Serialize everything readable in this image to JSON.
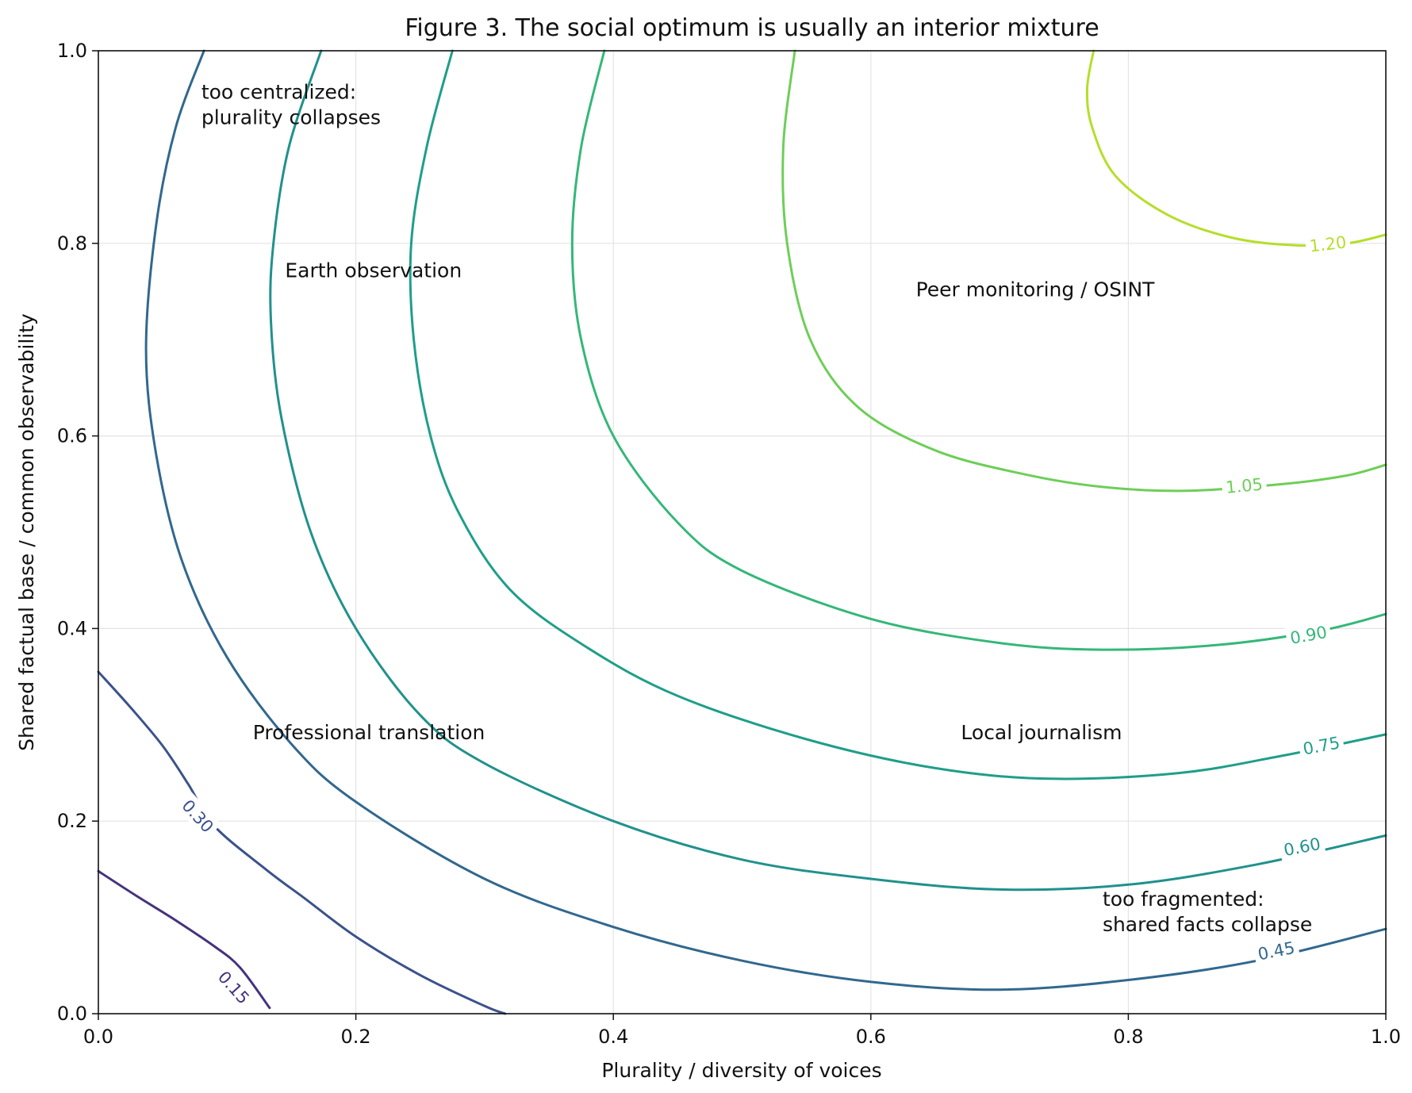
{
  "chart_data": {
    "type": "contour",
    "title": "Figure 3. The social optimum is usually an interior mixture",
    "xlabel": "Plurality / diversity of voices",
    "ylabel": "Shared factual base / common observability",
    "xlim": [
      0.0,
      1.0
    ],
    "ylim": [
      0.0,
      1.0
    ],
    "xticks": [
      "0.0",
      "0.2",
      "0.4",
      "0.6",
      "0.8",
      "1.0"
    ],
    "yticks": [
      "0.0",
      "0.2",
      "0.4",
      "0.6",
      "0.8",
      "1.0"
    ],
    "grid": true,
    "levels": [
      {
        "label": "0.15",
        "color": "#46327e",
        "label_at": [
          0.105,
          0.027
        ],
        "points": [
          [
            0.0,
            0.148
          ],
          [
            0.03,
            0.122
          ],
          [
            0.06,
            0.097
          ],
          [
            0.09,
            0.07
          ],
          [
            0.11,
            0.048
          ],
          [
            0.133,
            0.006
          ]
        ]
      },
      {
        "label": "0.30",
        "color": "#3b528b",
        "label_at": [
          0.077,
          0.205
        ],
        "points": [
          [
            0.0,
            0.355
          ],
          [
            0.025,
            0.318
          ],
          [
            0.05,
            0.278
          ],
          [
            0.07,
            0.238
          ],
          [
            0.09,
            0.195
          ],
          [
            0.13,
            0.15
          ],
          [
            0.16,
            0.12
          ],
          [
            0.2,
            0.08
          ],
          [
            0.25,
            0.04
          ],
          [
            0.3,
            0.008
          ],
          [
            0.316,
            0.0
          ]
        ]
      },
      {
        "label": "0.45",
        "color": "#31688e",
        "label_at": [
          0.915,
          0.065
        ],
        "points": [
          [
            0.082,
            1.0
          ],
          [
            0.06,
            0.92
          ],
          [
            0.045,
            0.82
          ],
          [
            0.037,
            0.69
          ],
          [
            0.045,
            0.58
          ],
          [
            0.065,
            0.47
          ],
          [
            0.1,
            0.37
          ],
          [
            0.15,
            0.28
          ],
          [
            0.2,
            0.22
          ],
          [
            0.3,
            0.14
          ],
          [
            0.4,
            0.09
          ],
          [
            0.5,
            0.055
          ],
          [
            0.6,
            0.033
          ],
          [
            0.7,
            0.025
          ],
          [
            0.8,
            0.035
          ],
          [
            0.9,
            0.055
          ],
          [
            1.0,
            0.088
          ]
        ]
      },
      {
        "label": "0.60",
        "color": "#21918c",
        "label_at": [
          0.935,
          0.173
        ],
        "points": [
          [
            0.173,
            1.0
          ],
          [
            0.148,
            0.9
          ],
          [
            0.136,
            0.8
          ],
          [
            0.134,
            0.72
          ],
          [
            0.142,
            0.62
          ],
          [
            0.165,
            0.5
          ],
          [
            0.2,
            0.4
          ],
          [
            0.25,
            0.31
          ],
          [
            0.3,
            0.26
          ],
          [
            0.4,
            0.2
          ],
          [
            0.5,
            0.16
          ],
          [
            0.6,
            0.14
          ],
          [
            0.7,
            0.129
          ],
          [
            0.8,
            0.134
          ],
          [
            0.9,
            0.155
          ],
          [
            1.0,
            0.185
          ]
        ]
      },
      {
        "label": "0.75",
        "color": "#1f9e89",
        "label_at": [
          0.95,
          0.278
        ],
        "points": [
          [
            0.275,
            1.0
          ],
          [
            0.255,
            0.9
          ],
          [
            0.243,
            0.8
          ],
          [
            0.245,
            0.7
          ],
          [
            0.258,
            0.6
          ],
          [
            0.28,
            0.52
          ],
          [
            0.32,
            0.44
          ],
          [
            0.38,
            0.38
          ],
          [
            0.45,
            0.33
          ],
          [
            0.55,
            0.285
          ],
          [
            0.65,
            0.255
          ],
          [
            0.74,
            0.244
          ],
          [
            0.84,
            0.25
          ],
          [
            0.92,
            0.268
          ],
          [
            1.0,
            0.29
          ]
        ]
      },
      {
        "label": "0.90",
        "color": "#35b779",
        "label_at": [
          0.94,
          0.393
        ],
        "points": [
          [
            0.393,
            1.0
          ],
          [
            0.375,
            0.9
          ],
          [
            0.368,
            0.8
          ],
          [
            0.375,
            0.7
          ],
          [
            0.4,
            0.6
          ],
          [
            0.45,
            0.51
          ],
          [
            0.5,
            0.46
          ],
          [
            0.6,
            0.41
          ],
          [
            0.7,
            0.385
          ],
          [
            0.78,
            0.378
          ],
          [
            0.87,
            0.383
          ],
          [
            0.95,
            0.398
          ],
          [
            1.0,
            0.415
          ]
        ]
      },
      {
        "label": "1.05",
        "color": "#6ece58",
        "label_at": [
          0.89,
          0.548
        ],
        "points": [
          [
            0.541,
            1.0
          ],
          [
            0.532,
            0.9
          ],
          [
            0.535,
            0.8
          ],
          [
            0.553,
            0.7
          ],
          [
            0.59,
            0.63
          ],
          [
            0.65,
            0.585
          ],
          [
            0.72,
            0.56
          ],
          [
            0.78,
            0.547
          ],
          [
            0.845,
            0.543
          ],
          [
            0.92,
            0.55
          ],
          [
            0.97,
            0.559
          ],
          [
            1.0,
            0.57
          ]
        ]
      },
      {
        "label": "1.20",
        "color": "#b5de2b",
        "label_at": [
          0.955,
          0.799
        ],
        "points": [
          [
            0.773,
            1.0
          ],
          [
            0.768,
            0.96
          ],
          [
            0.772,
            0.92
          ],
          [
            0.79,
            0.87
          ],
          [
            0.83,
            0.83
          ],
          [
            0.88,
            0.806
          ],
          [
            0.93,
            0.798
          ],
          [
            0.97,
            0.8
          ],
          [
            1.0,
            0.809
          ]
        ]
      }
    ],
    "annotations": [
      {
        "lines": [
          "too centralized:",
          "plurality collapses"
        ],
        "at": [
          0.08,
          0.95
        ]
      },
      {
        "lines": [
          "Earth observation"
        ],
        "at": [
          0.145,
          0.765
        ]
      },
      {
        "lines": [
          "Peer monitoring / OSINT"
        ],
        "at": [
          0.635,
          0.745
        ]
      },
      {
        "lines": [
          "Professional translation"
        ],
        "at": [
          0.12,
          0.285
        ]
      },
      {
        "lines": [
          "Local journalism"
        ],
        "at": [
          0.67,
          0.285
        ]
      },
      {
        "lines": [
          "too fragmented:",
          "shared facts collapse"
        ],
        "at": [
          0.78,
          0.112
        ]
      }
    ]
  }
}
